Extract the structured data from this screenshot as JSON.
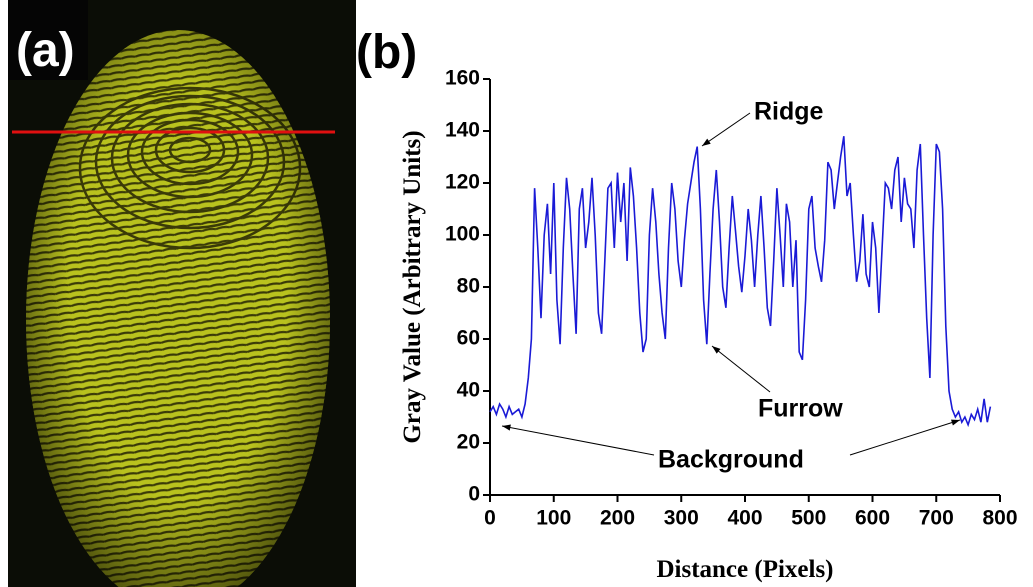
{
  "panel_a": {
    "label": "(a)"
  },
  "chart_data": {
    "type": "line",
    "panel_label": "(b)",
    "x_label": "Distance (Pixels)",
    "y_label": "Gray Value (Arbitrary Units)",
    "annotations": [
      "Ridge",
      "Furrow",
      "Background"
    ],
    "color": "#1a1ad6",
    "x": [
      0,
      5,
      10,
      15,
      20,
      25,
      30,
      35,
      40,
      45,
      50,
      55,
      60,
      65,
      70,
      75,
      80,
      85,
      90,
      95,
      100,
      105,
      110,
      115,
      120,
      125,
      130,
      135,
      140,
      145,
      150,
      155,
      160,
      165,
      170,
      175,
      180,
      185,
      190,
      195,
      200,
      205,
      210,
      215,
      220,
      225,
      230,
      235,
      240,
      245,
      250,
      255,
      260,
      265,
      270,
      275,
      280,
      285,
      290,
      295,
      300,
      305,
      310,
      315,
      320,
      325,
      330,
      335,
      340,
      345,
      350,
      355,
      360,
      365,
      370,
      375,
      380,
      385,
      390,
      395,
      400,
      405,
      410,
      415,
      420,
      425,
      430,
      435,
      440,
      445,
      450,
      455,
      460,
      465,
      470,
      475,
      480,
      485,
      490,
      495,
      500,
      505,
      510,
      515,
      520,
      525,
      530,
      535,
      540,
      545,
      550,
      555,
      560,
      565,
      570,
      575,
      580,
      585,
      590,
      595,
      600,
      605,
      610,
      615,
      620,
      625,
      630,
      635,
      640,
      645,
      650,
      655,
      660,
      665,
      670,
      675,
      680,
      685,
      690,
      695,
      700,
      705,
      710,
      715,
      720,
      725,
      730,
      735,
      740,
      745,
      750,
      755,
      760,
      765,
      770,
      775,
      780,
      785
    ],
    "values": [
      32,
      34,
      31,
      35,
      33,
      30,
      34,
      31,
      32,
      33,
      30,
      35,
      45,
      60,
      118,
      95,
      68,
      100,
      112,
      85,
      120,
      75,
      58,
      95,
      122,
      110,
      85,
      62,
      110,
      118,
      95,
      105,
      122,
      100,
      70,
      62,
      90,
      118,
      120,
      95,
      124,
      105,
      120,
      90,
      126,
      115,
      95,
      70,
      55,
      60,
      100,
      118,
      105,
      85,
      70,
      60,
      95,
      120,
      110,
      90,
      80,
      98,
      112,
      120,
      128,
      134,
      110,
      75,
      58,
      85,
      110,
      125,
      105,
      80,
      72,
      95,
      115,
      102,
      88,
      78,
      92,
      110,
      98,
      80,
      100,
      115,
      95,
      72,
      65,
      90,
      118,
      100,
      80,
      112,
      105,
      80,
      98,
      55,
      52,
      75,
      110,
      115,
      95,
      88,
      82,
      98,
      128,
      125,
      110,
      120,
      130,
      138,
      115,
      120,
      100,
      82,
      90,
      108,
      85,
      80,
      105,
      95,
      70,
      95,
      120,
      118,
      110,
      125,
      130,
      105,
      122,
      112,
      110,
      95,
      125,
      135,
      100,
      68,
      45,
      100,
      135,
      132,
      110,
      65,
      40,
      33,
      30,
      32,
      28,
      30,
      27,
      31,
      29,
      33,
      28,
      37,
      28,
      34
    ],
    "xlim": [
      0,
      800
    ],
    "ylim": [
      0,
      160
    ],
    "xticks": [
      0,
      100,
      200,
      300,
      400,
      500,
      600,
      700,
      800
    ],
    "yticks": [
      0,
      20,
      40,
      60,
      80,
      100,
      120,
      140,
      160
    ]
  }
}
